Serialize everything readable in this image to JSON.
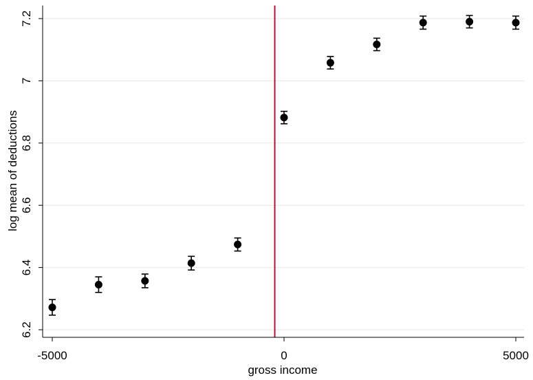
{
  "chart_data": {
    "type": "scatter",
    "title": "",
    "xlabel": "gross income",
    "ylabel": "log mean of deductions",
    "xlim": [
      -5000,
      5000
    ],
    "ylim": [
      6.2,
      7.2
    ],
    "xticks": [
      -5000,
      0,
      5000
    ],
    "xtick_labels": [
      "-5000",
      "0",
      "5000"
    ],
    "yticks": [
      6.2,
      6.4,
      6.6,
      6.8,
      7.0,
      7.2
    ],
    "ytick_labels": [
      "6.2",
      "6.4",
      "6.6",
      "6.8",
      "7",
      "7.2"
    ],
    "grid": "horizontal",
    "cutoff_x": -200,
    "points": [
      {
        "x": -5000,
        "y": 6.272,
        "lo": 6.247,
        "hi": 6.297
      },
      {
        "x": -4000,
        "y": 6.345,
        "lo": 6.32,
        "hi": 6.37
      },
      {
        "x": -3000,
        "y": 6.357,
        "lo": 6.335,
        "hi": 6.379
      },
      {
        "x": -2000,
        "y": 6.414,
        "lo": 6.392,
        "hi": 6.436
      },
      {
        "x": -1000,
        "y": 6.474,
        "lo": 6.453,
        "hi": 6.495
      },
      {
        "x": 0,
        "y": 6.882,
        "lo": 6.862,
        "hi": 6.902
      },
      {
        "x": 1000,
        "y": 7.058,
        "lo": 7.038,
        "hi": 7.078
      },
      {
        "x": 2000,
        "y": 7.117,
        "lo": 7.097,
        "hi": 7.137
      },
      {
        "x": 3000,
        "y": 7.187,
        "lo": 7.166,
        "hi": 7.208
      },
      {
        "x": 4000,
        "y": 7.19,
        "lo": 7.17,
        "hi": 7.21
      },
      {
        "x": 5000,
        "y": 7.187,
        "lo": 7.166,
        "hi": 7.208
      }
    ],
    "colors": {
      "marker": "#000000",
      "cutoff_line": "#b0103a",
      "grid": "#e6e6e6",
      "axis": "#000000"
    }
  }
}
